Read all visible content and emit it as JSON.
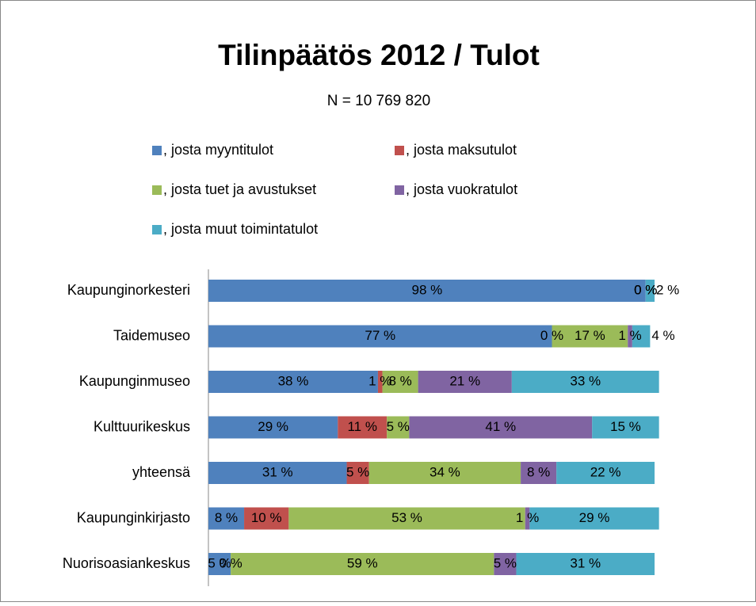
{
  "chart_data": {
    "type": "stacked-bar-horizontal",
    "title": "Tilinpäätös 2012 / Tulot",
    "subtitle": "N = 10 769 820",
    "categories": [
      "Kaupunginorkesteri",
      "Taidemuseo",
      "Kaupunginmuseo",
      "Kulttuurikeskus",
      "yhteensä",
      "Kaupunginkirjasto",
      "Nuorisoasiankeskus"
    ],
    "xlim": [
      0,
      100
    ],
    "legend": "top",
    "series": [
      {
        "name": ", josta myyntitulot",
        "color": "#4f81bd",
        "values": [
          98,
          77,
          38,
          29,
          31,
          8,
          5
        ],
        "value_labels": [
          "98 %",
          "77 %",
          "38 %",
          "29 %",
          "31 %",
          "8 %",
          "5 %"
        ]
      },
      {
        "name": ", josta maksutulot",
        "color": "#c0504d",
        "values": [
          0,
          0,
          1,
          11,
          5,
          10,
          0
        ],
        "value_labels": [
          "0 %",
          "0 %",
          "1 %",
          "11 %",
          "5 %",
          "10 %",
          "0 %"
        ]
      },
      {
        "name": ", josta tuet ja avustukset",
        "color": "#9bbb59",
        "values": [
          0,
          17,
          8,
          5,
          34,
          53,
          59
        ],
        "value_labels": [
          "0 %",
          "17 %",
          "8 %",
          "5 %",
          "34 %",
          "53 %",
          "59 %"
        ]
      },
      {
        "name": ", josta vuokratulot",
        "color": "#8064a2",
        "values": [
          0,
          1,
          21,
          41,
          8,
          1,
          5
        ],
        "value_labels": [
          "0 %",
          "1 %",
          "21 %",
          "41 %",
          "8 %",
          "1 %",
          "5 %"
        ]
      },
      {
        "name": ", josta muut toimintatulot",
        "color": "#4bacc6",
        "values": [
          2,
          4,
          33,
          15,
          22,
          29,
          31
        ],
        "value_labels": [
          "2 %",
          "4 %",
          "33 %",
          "15 %",
          "22 %",
          "29 %",
          "31 %"
        ]
      }
    ]
  }
}
